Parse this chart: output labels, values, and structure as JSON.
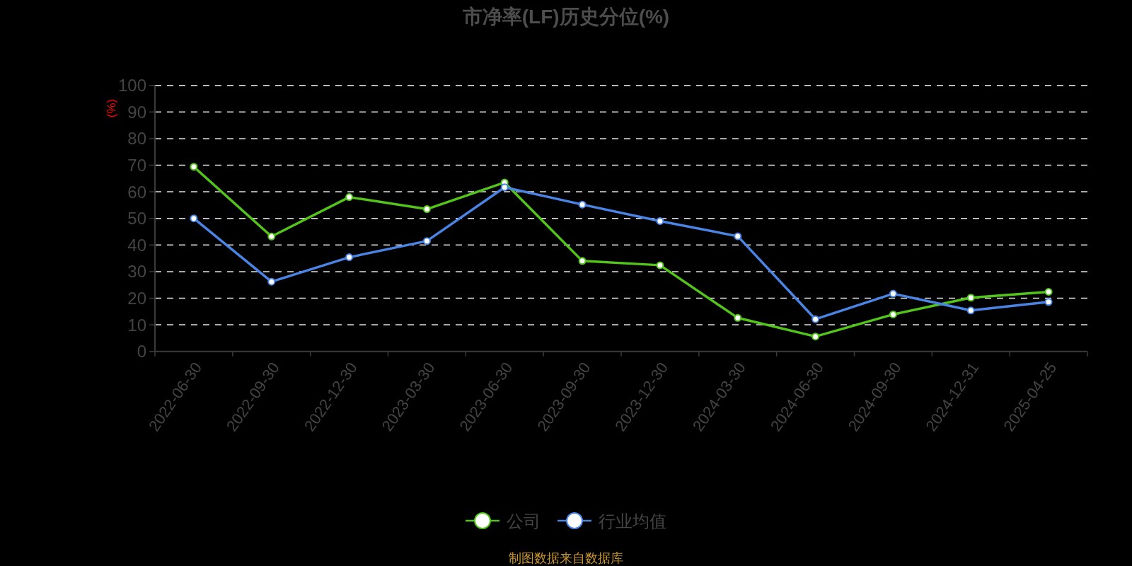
{
  "chart_data": {
    "type": "line",
    "title": "市净率(LF)历史分位(%)",
    "ylabel": "(%)",
    "categories": [
      "2022-06-30",
      "2022-09-30",
      "2022-12-30",
      "2023-03-30",
      "2023-06-30",
      "2023-09-30",
      "2023-12-30",
      "2024-03-30",
      "2024-06-30",
      "2024-09-30",
      "2024-12-31",
      "2025-04-25"
    ],
    "series": [
      {
        "name": "公司",
        "color": "#52c41a",
        "values": [
          69.4,
          43.2,
          58.0,
          53.5,
          63.5,
          34.0,
          32.4,
          12.6,
          5.6,
          13.9,
          20.2,
          22.4
        ]
      },
      {
        "name": "行业均值",
        "color": "#4a84e4",
        "values": [
          50.0,
          26.2,
          35.4,
          41.5,
          61.7,
          55.2,
          49.0,
          43.3,
          12.1,
          21.7,
          15.4,
          18.6
        ]
      }
    ],
    "ylim": [
      0,
      100
    ],
    "yticks": [
      0,
      10,
      20,
      30,
      40,
      50,
      60,
      70,
      80,
      90,
      100
    ],
    "grid": "y",
    "legend": "bottom",
    "marker": "circle",
    "line_style": "solid",
    "annotations": [
      "制图数据来自数据库"
    ]
  }
}
